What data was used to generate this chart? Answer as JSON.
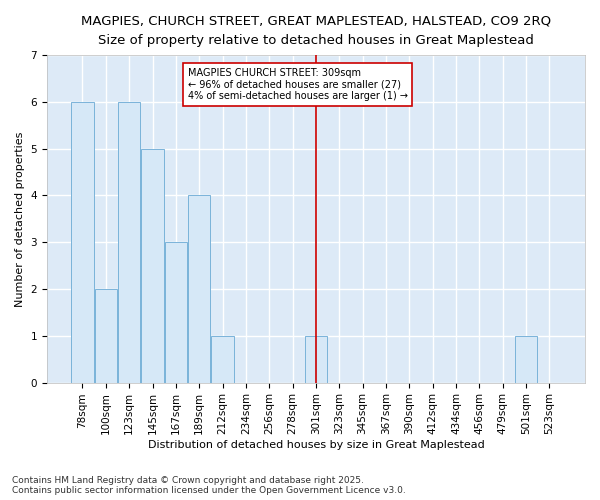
{
  "title1": "MAGPIES, CHURCH STREET, GREAT MAPLESTEAD, HALSTEAD, CO9 2RQ",
  "title2": "Size of property relative to detached houses in Great Maplestead",
  "xlabel": "Distribution of detached houses by size in Great Maplestead",
  "ylabel": "Number of detached properties",
  "categories": [
    "78sqm",
    "100sqm",
    "123sqm",
    "145sqm",
    "167sqm",
    "189sqm",
    "212sqm",
    "234sqm",
    "256sqm",
    "278sqm",
    "301sqm",
    "323sqm",
    "345sqm",
    "367sqm",
    "390sqm",
    "412sqm",
    "434sqm",
    "456sqm",
    "479sqm",
    "501sqm",
    "523sqm"
  ],
  "values": [
    6,
    2,
    6,
    5,
    3,
    4,
    1,
    0,
    0,
    0,
    1,
    0,
    0,
    0,
    0,
    0,
    0,
    0,
    0,
    1,
    0
  ],
  "bar_color": "#d6e8f7",
  "bar_edge_color": "#7ab3d9",
  "annotation_line1": "MAGPIES CHURCH STREET: 309sqm",
  "annotation_line2": "← 96% of detached houses are smaller (27)",
  "annotation_line3": "4% of semi-detached houses are larger (1) →",
  "annotation_box_color": "#ffffff",
  "annotation_box_edge": "#cc0000",
  "vline_color": "#cc0000",
  "vline_x_index": 10,
  "ylim": [
    0,
    7
  ],
  "yticks": [
    0,
    1,
    2,
    3,
    4,
    5,
    6,
    7
  ],
  "footnote1": "Contains HM Land Registry data © Crown copyright and database right 2025.",
  "footnote2": "Contains public sector information licensed under the Open Government Licence v3.0.",
  "fig_background_color": "#ffffff",
  "plot_background": "#ddeaf7",
  "grid_color": "#ffffff",
  "title_fontsize": 9.5,
  "subtitle_fontsize": 8.5,
  "tick_fontsize": 7.5,
  "label_fontsize": 8,
  "footnote_fontsize": 6.5,
  "annotation_fontsize": 7
}
